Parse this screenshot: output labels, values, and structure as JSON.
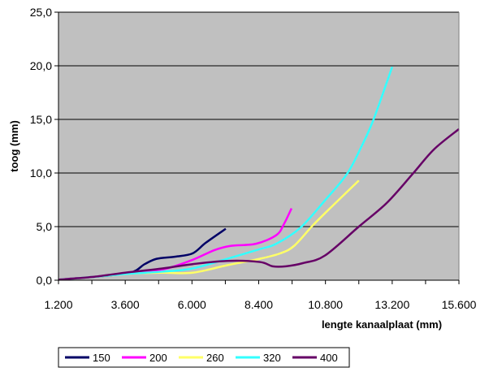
{
  "chart_data": {
    "type": "line",
    "title": "",
    "xlabel": "lengte kanaalplaat (mm)",
    "ylabel": "toog (mm)",
    "xlim": [
      1200,
      15600
    ],
    "ylim": [
      0,
      25
    ],
    "x_ticks": [
      1200,
      3600,
      6000,
      8400,
      10800,
      13200,
      15600
    ],
    "x_tick_labels": [
      "1.200",
      "3.600",
      "6.000",
      "8.400",
      "10.800",
      "13.200",
      "15.600"
    ],
    "y_ticks": [
      0,
      5,
      10,
      15,
      20,
      25
    ],
    "y_tick_labels": [
      "0,0",
      "5,0",
      "10,0",
      "15,0",
      "20,0",
      "25,0"
    ],
    "grid": "horizontal",
    "legend_position": "bottom",
    "series": [
      {
        "name": "150",
        "color": "#000066",
        "points": [
          [
            1200,
            0.05
          ],
          [
            2400,
            0.3
          ],
          [
            3770,
            0.7
          ],
          [
            4300,
            1.5
          ],
          [
            4730,
            2.0
          ],
          [
            5400,
            2.2
          ],
          [
            6020,
            2.5
          ],
          [
            6500,
            3.5
          ],
          [
            7215,
            4.8
          ]
        ]
      },
      {
        "name": "200",
        "color": "#ff00ff",
        "points": [
          [
            1200,
            0.05
          ],
          [
            2400,
            0.3
          ],
          [
            3700,
            0.7
          ],
          [
            4940,
            1.0
          ],
          [
            6020,
            1.9
          ],
          [
            6800,
            2.8
          ],
          [
            7390,
            3.2
          ],
          [
            8300,
            3.4
          ],
          [
            9030,
            4.2
          ],
          [
            9300,
            5.2
          ],
          [
            9580,
            6.7
          ]
        ]
      },
      {
        "name": "260",
        "color": "#ffff66",
        "points": [
          [
            1200,
            0.05
          ],
          [
            2400,
            0.3
          ],
          [
            3700,
            0.6
          ],
          [
            4940,
            0.7
          ],
          [
            6020,
            0.7
          ],
          [
            7270,
            1.4
          ],
          [
            8440,
            2.0
          ],
          [
            9170,
            2.5
          ],
          [
            9670,
            3.2
          ],
          [
            10340,
            5.1
          ],
          [
            11000,
            6.8
          ],
          [
            12000,
            9.3
          ]
        ]
      },
      {
        "name": "320",
        "color": "#33ffff",
        "points": [
          [
            1200,
            0.05
          ],
          [
            2400,
            0.3
          ],
          [
            3700,
            0.6
          ],
          [
            4940,
            0.8
          ],
          [
            6020,
            1.1
          ],
          [
            7270,
            2.0
          ],
          [
            8440,
            2.9
          ],
          [
            9030,
            3.4
          ],
          [
            9900,
            4.9
          ],
          [
            10800,
            7.5
          ],
          [
            11570,
            9.9
          ],
          [
            12100,
            12.5
          ],
          [
            12530,
            15.0
          ],
          [
            13200,
            19.9
          ]
        ]
      },
      {
        "name": "400",
        "color": "#660066",
        "points": [
          [
            1200,
            0.05
          ],
          [
            2400,
            0.3
          ],
          [
            3600,
            0.7
          ],
          [
            4940,
            1.1
          ],
          [
            6020,
            1.5
          ],
          [
            7270,
            1.8
          ],
          [
            8440,
            1.7
          ],
          [
            8900,
            1.3
          ],
          [
            9380,
            1.3
          ],
          [
            10000,
            1.6
          ],
          [
            10780,
            2.3
          ],
          [
            12000,
            5.0
          ],
          [
            13000,
            7.2
          ],
          [
            13930,
            9.9
          ],
          [
            14700,
            12.2
          ],
          [
            15600,
            14.1
          ]
        ]
      }
    ]
  }
}
